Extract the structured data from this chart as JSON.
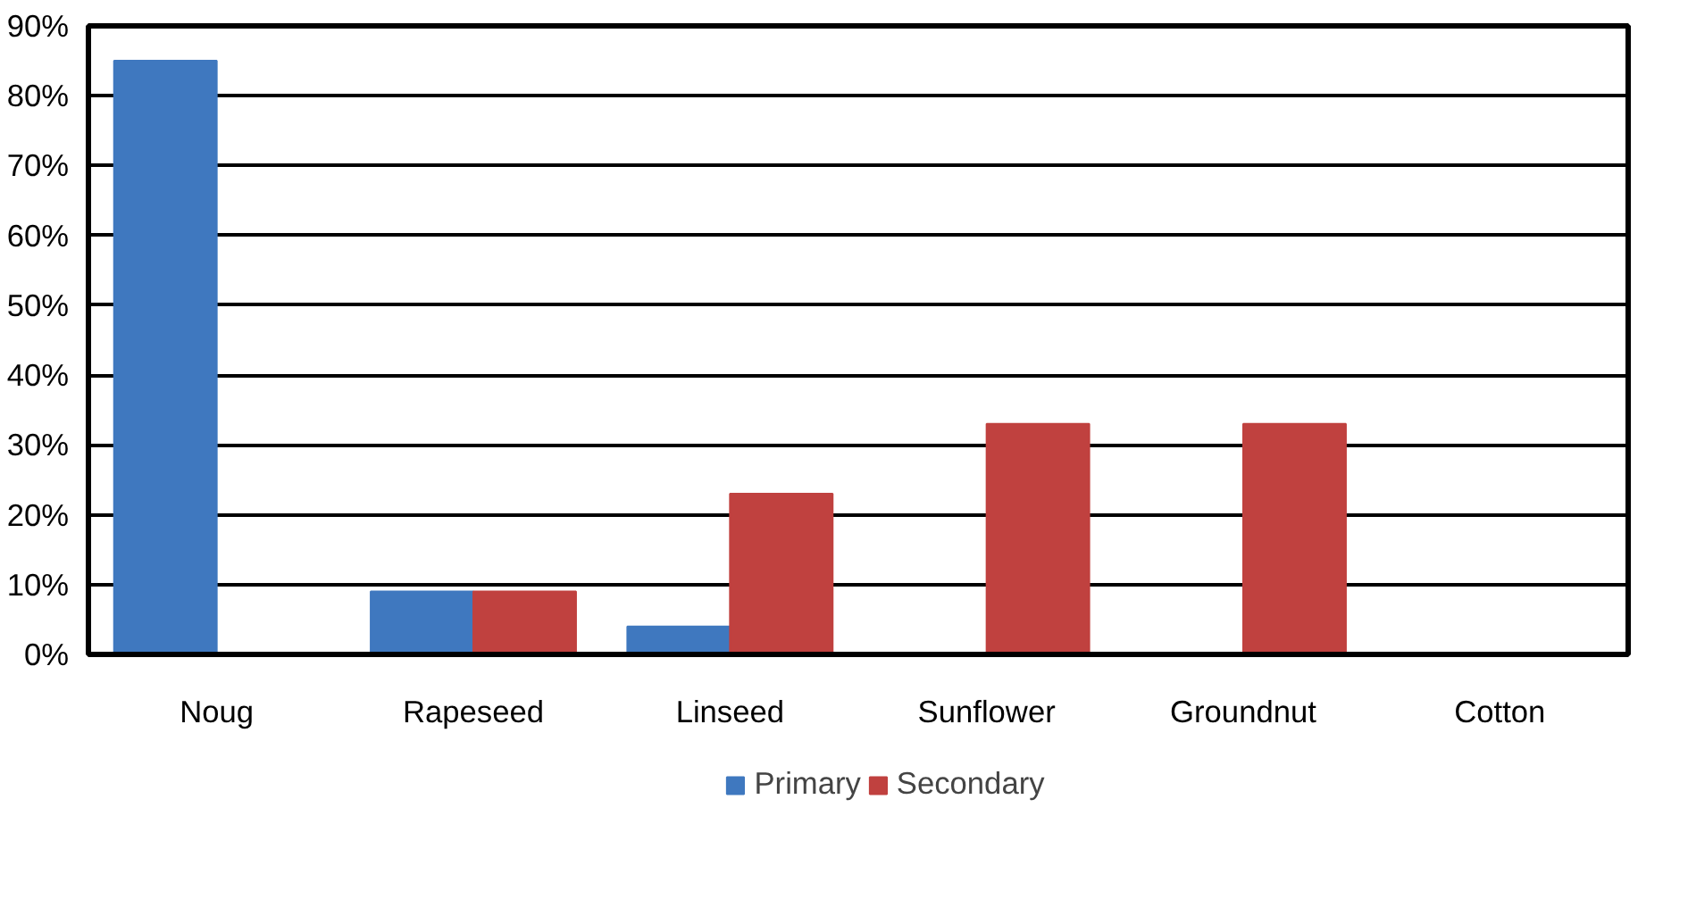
{
  "chart_data": {
    "type": "bar",
    "categories": [
      "Noug",
      "Rapeseed",
      "Linseed",
      "Sunflower",
      "Groundnut",
      "Cotton"
    ],
    "series": [
      {
        "name": "Primary",
        "color": "#3f78bf",
        "values": [
          85,
          9,
          4,
          0,
          0,
          0
        ]
      },
      {
        "name": "Secondary",
        "color": "#c0413f",
        "values": [
          0,
          9,
          23,
          33,
          33,
          0
        ]
      }
    ],
    "ylim": [
      0,
      90
    ],
    "yticks": [
      {
        "value": 0,
        "label": "0%"
      },
      {
        "value": 10,
        "label": "10%"
      },
      {
        "value": 20,
        "label": "20%"
      },
      {
        "value": 30,
        "label": "30%"
      },
      {
        "value": 40,
        "label": "40%"
      },
      {
        "value": 50,
        "label": "50%"
      },
      {
        "value": 60,
        "label": "60%"
      },
      {
        "value": 70,
        "label": "70%"
      },
      {
        "value": 80,
        "label": "80%"
      },
      {
        "value": 90,
        "label": "90%"
      }
    ],
    "grid": "y",
    "legend": "bottom"
  }
}
